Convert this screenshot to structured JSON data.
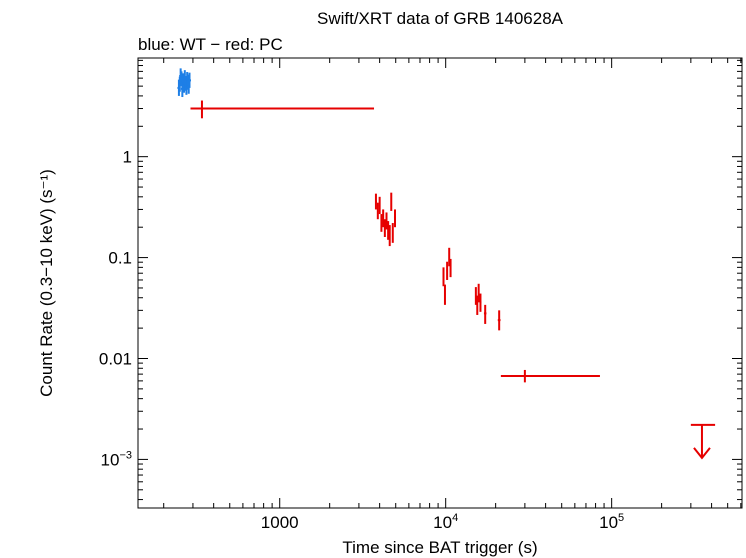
{
  "chart_data": {
    "type": "scatter",
    "title": "Swift/XRT data of GRB 140628A",
    "subtitle": "blue: WT − red: PC",
    "xlabel": "Time since BAT trigger (s)",
    "ylabel": "Count Rate (0.3−10 keV) (s⁻¹)",
    "xscale": "log",
    "yscale": "log",
    "xlim": [
      140,
      610000
    ],
    "ylim": [
      0.00033,
      9.5
    ],
    "x_ticks": [
      {
        "value": 1000,
        "label": "1000"
      },
      {
        "value": 10000,
        "label": "10⁴"
      },
      {
        "value": 100000,
        "label": "10⁵"
      }
    ],
    "y_ticks": [
      {
        "value": 1,
        "label": "1"
      },
      {
        "value": 0.1,
        "label": "0.1"
      },
      {
        "value": 0.01,
        "label": "0.01"
      },
      {
        "value": 0.001,
        "label": "10⁻³"
      }
    ],
    "colors": {
      "WT": "#1e7fe6",
      "PC": "#e60000"
    },
    "series": [
      {
        "name": "WT",
        "points": [
          {
            "x": 247,
            "y": 4.8,
            "ylo": 4.0,
            "yhi": 5.8
          },
          {
            "x": 250,
            "y": 5.2,
            "ylo": 4.4,
            "yhi": 6.2
          },
          {
            "x": 253,
            "y": 6.3,
            "ylo": 5.3,
            "yhi": 7.5
          },
          {
            "x": 256,
            "y": 5.9,
            "ylo": 5.0,
            "yhi": 7.0
          },
          {
            "x": 259,
            "y": 4.7,
            "ylo": 3.9,
            "yhi": 5.6
          },
          {
            "x": 262,
            "y": 5.6,
            "ylo": 4.7,
            "yhi": 6.7
          },
          {
            "x": 265,
            "y": 5.1,
            "ylo": 4.3,
            "yhi": 6.1
          },
          {
            "x": 268,
            "y": 6.1,
            "ylo": 5.1,
            "yhi": 7.2
          },
          {
            "x": 271,
            "y": 5.3,
            "ylo": 4.5,
            "yhi": 6.3
          },
          {
            "x": 274,
            "y": 4.9,
            "ylo": 4.1,
            "yhi": 5.9
          },
          {
            "x": 277,
            "y": 5.8,
            "ylo": 4.9,
            "yhi": 6.9
          },
          {
            "x": 280,
            "y": 5.5,
            "ylo": 4.6,
            "yhi": 6.5
          },
          {
            "x": 283,
            "y": 5.0,
            "ylo": 4.2,
            "yhi": 6.0
          },
          {
            "x": 286,
            "y": 5.7,
            "ylo": 4.8,
            "yhi": 6.8
          }
        ]
      },
      {
        "name": "PC",
        "points": [
          {
            "x": 340,
            "xlo": 290,
            "xhi": 3700,
            "y": 3.0,
            "ylo": 2.4,
            "yhi": 3.6
          },
          {
            "x": 3800,
            "xlo": 3750,
            "xhi": 3850,
            "y": 0.36,
            "ylo": 0.3,
            "yhi": 0.43
          },
          {
            "x": 3900,
            "xlo": 3860,
            "xhi": 3940,
            "y": 0.29,
            "ylo": 0.24,
            "yhi": 0.35
          },
          {
            "x": 4000,
            "xlo": 3960,
            "xhi": 4040,
            "y": 0.33,
            "ylo": 0.27,
            "yhi": 0.4
          },
          {
            "x": 4100,
            "xlo": 4060,
            "xhi": 4140,
            "y": 0.22,
            "ylo": 0.18,
            "yhi": 0.27
          },
          {
            "x": 4200,
            "xlo": 4160,
            "xhi": 4240,
            "y": 0.25,
            "ylo": 0.2,
            "yhi": 0.3
          },
          {
            "x": 4300,
            "xlo": 4260,
            "xhi": 4340,
            "y": 0.2,
            "ylo": 0.16,
            "yhi": 0.24
          },
          {
            "x": 4400,
            "xlo": 4360,
            "xhi": 4440,
            "y": 0.23,
            "ylo": 0.19,
            "yhi": 0.28
          },
          {
            "x": 4500,
            "xlo": 4460,
            "xhi": 4540,
            "y": 0.19,
            "ylo": 0.15,
            "yhi": 0.23
          },
          {
            "x": 4600,
            "xlo": 4560,
            "xhi": 4640,
            "y": 0.17,
            "ylo": 0.13,
            "yhi": 0.21
          },
          {
            "x": 4700,
            "xlo": 4660,
            "xhi": 4740,
            "y": 0.36,
            "ylo": 0.29,
            "yhi": 0.44
          },
          {
            "x": 4800,
            "xlo": 4760,
            "xhi": 4840,
            "y": 0.18,
            "ylo": 0.14,
            "yhi": 0.22
          },
          {
            "x": 4950,
            "xlo": 4880,
            "xhi": 5020,
            "y": 0.25,
            "ylo": 0.2,
            "yhi": 0.3
          },
          {
            "x": 9700,
            "xlo": 9620,
            "xhi": 9780,
            "y": 0.065,
            "ylo": 0.052,
            "yhi": 0.08
          },
          {
            "x": 9900,
            "xlo": 9820,
            "xhi": 9980,
            "y": 0.043,
            "ylo": 0.034,
            "yhi": 0.054
          },
          {
            "x": 10200,
            "xlo": 10100,
            "xhi": 10300,
            "y": 0.075,
            "ylo": 0.06,
            "yhi": 0.091
          },
          {
            "x": 10500,
            "xlo": 10400,
            "xhi": 10600,
            "y": 0.1,
            "ylo": 0.082,
            "yhi": 0.125
          },
          {
            "x": 10700,
            "xlo": 10620,
            "xhi": 10780,
            "y": 0.08,
            "ylo": 0.064,
            "yhi": 0.097
          },
          {
            "x": 15200,
            "xlo": 15100,
            "xhi": 15300,
            "y": 0.042,
            "ylo": 0.034,
            "yhi": 0.051
          },
          {
            "x": 15500,
            "xlo": 15400,
            "xhi": 15600,
            "y": 0.034,
            "ylo": 0.027,
            "yhi": 0.042
          },
          {
            "x": 15800,
            "xlo": 15700,
            "xhi": 15900,
            "y": 0.045,
            "ylo": 0.036,
            "yhi": 0.055
          },
          {
            "x": 16200,
            "xlo": 16000,
            "xhi": 16400,
            "y": 0.036,
            "ylo": 0.029,
            "yhi": 0.044
          },
          {
            "x": 17300,
            "xlo": 17000,
            "xhi": 17600,
            "y": 0.028,
            "ylo": 0.022,
            "yhi": 0.034
          },
          {
            "x": 21000,
            "xlo": 20600,
            "xhi": 21400,
            "y": 0.024,
            "ylo": 0.019,
            "yhi": 0.03
          },
          {
            "x": 30000,
            "xlo": 21500,
            "xhi": 85000,
            "y": 0.0067,
            "ylo": 0.0058,
            "yhi": 0.0077
          }
        ]
      }
    ],
    "upper_limits": [
      {
        "series": "PC",
        "x": 350000,
        "xlo": 300000,
        "xhi": 420000,
        "y": 0.0022
      }
    ]
  }
}
